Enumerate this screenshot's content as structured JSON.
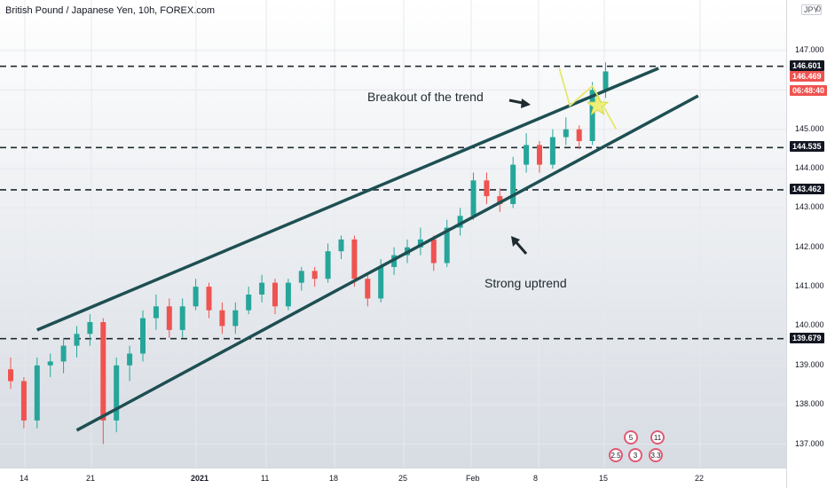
{
  "chart_data": {
    "type": "candlestick",
    "title": "British Pound / Japanese Yen, 10h, FOREX.com",
    "currency": "JPY",
    "currency_menu": "0",
    "y_ticks": [
      "147.000",
      "146.000",
      "145.000",
      "144.000",
      "143.000",
      "142.000",
      "141.000",
      "140.000",
      "139.000",
      "138.000",
      "137.000"
    ],
    "x_ticks": [
      "14",
      "21",
      "2021",
      "11",
      "18",
      "25",
      "Feb",
      "8",
      "15",
      "22"
    ],
    "levels": [
      {
        "label": "146.601",
        "value": 146.601,
        "color": "#131722"
      },
      {
        "label": "144.535",
        "value": 144.535,
        "color": "#131722"
      },
      {
        "label": "143.462",
        "value": 143.462,
        "color": "#131722"
      },
      {
        "label": "139.679",
        "value": 139.679,
        "color": "#131722"
      }
    ],
    "last_price": {
      "label": "146.469",
      "countdown": "06:48:40",
      "color": "#ef5350"
    },
    "annotations": [
      {
        "text": "Breakout of the trend"
      },
      {
        "text": "Strong uptrend"
      }
    ],
    "trendlines": [
      {
        "name": "upper",
        "from": [
          2,
          139.9
        ],
        "to": [
          49,
          146.55
        ]
      },
      {
        "name": "lower",
        "from": [
          5,
          137.35
        ],
        "to": [
          52,
          145.85
        ]
      }
    ],
    "projection": [
      [
        41.5,
        146.55
      ],
      [
        42.3,
        145.6
      ],
      [
        44,
        146.1
      ],
      [
        45.8,
        145.0
      ]
    ],
    "event_markers": [
      "5",
      "11",
      "2.5",
      "3",
      "3.3"
    ],
    "ohlc": [
      [
        138.9,
        139.2,
        138.4,
        138.6
      ],
      [
        138.6,
        138.7,
        137.4,
        137.6
      ],
      [
        137.6,
        139.2,
        137.4,
        139.0
      ],
      [
        139.0,
        139.3,
        138.7,
        139.1
      ],
      [
        139.1,
        139.7,
        138.8,
        139.5
      ],
      [
        139.5,
        140.0,
        139.2,
        139.8
      ],
      [
        139.8,
        140.3,
        139.5,
        140.1
      ],
      [
        140.1,
        140.2,
        137.0,
        137.6
      ],
      [
        137.6,
        139.2,
        137.3,
        139.0
      ],
      [
        139.0,
        139.5,
        138.6,
        139.3
      ],
      [
        139.3,
        140.4,
        139.1,
        140.2
      ],
      [
        140.2,
        140.8,
        139.9,
        140.5
      ],
      [
        140.5,
        140.7,
        139.7,
        139.9
      ],
      [
        139.9,
        140.7,
        139.7,
        140.5
      ],
      [
        140.5,
        141.2,
        140.4,
        141.0
      ],
      [
        141.0,
        141.1,
        140.2,
        140.4
      ],
      [
        140.4,
        140.6,
        139.8,
        140.0
      ],
      [
        140.0,
        140.6,
        139.8,
        140.4
      ],
      [
        140.4,
        141.0,
        140.3,
        140.8
      ],
      [
        140.8,
        141.3,
        140.6,
        141.1
      ],
      [
        141.1,
        141.2,
        140.3,
        140.5
      ],
      [
        140.5,
        141.2,
        140.4,
        141.1
      ],
      [
        141.1,
        141.5,
        140.9,
        141.4
      ],
      [
        141.4,
        141.5,
        141.0,
        141.2
      ],
      [
        141.2,
        142.1,
        141.1,
        141.9
      ],
      [
        141.9,
        142.3,
        141.7,
        142.2
      ],
      [
        142.2,
        142.3,
        141.0,
        141.2
      ],
      [
        141.2,
        141.3,
        140.5,
        140.7
      ],
      [
        140.7,
        141.7,
        140.6,
        141.5
      ],
      [
        141.5,
        142.0,
        141.3,
        141.8
      ],
      [
        141.8,
        142.2,
        141.6,
        142.0
      ],
      [
        142.0,
        142.5,
        141.8,
        142.2
      ],
      [
        142.2,
        142.3,
        141.4,
        141.6
      ],
      [
        141.6,
        142.7,
        141.5,
        142.5
      ],
      [
        142.5,
        143.0,
        142.3,
        142.8
      ],
      [
        142.8,
        143.9,
        142.7,
        143.7
      ],
      [
        143.7,
        143.9,
        143.1,
        143.3
      ],
      [
        143.3,
        143.5,
        142.9,
        143.1
      ],
      [
        143.1,
        144.3,
        143.0,
        144.1
      ],
      [
        144.1,
        144.9,
        143.9,
        144.6
      ],
      [
        144.6,
        144.7,
        143.9,
        144.1
      ],
      [
        144.1,
        145.0,
        144.0,
        144.8
      ],
      [
        144.8,
        145.3,
        144.6,
        145.0
      ],
      [
        145.0,
        145.1,
        144.5,
        144.7
      ],
      [
        144.7,
        146.2,
        144.6,
        146.0
      ],
      [
        146.0,
        146.7,
        145.8,
        146.47
      ]
    ]
  }
}
